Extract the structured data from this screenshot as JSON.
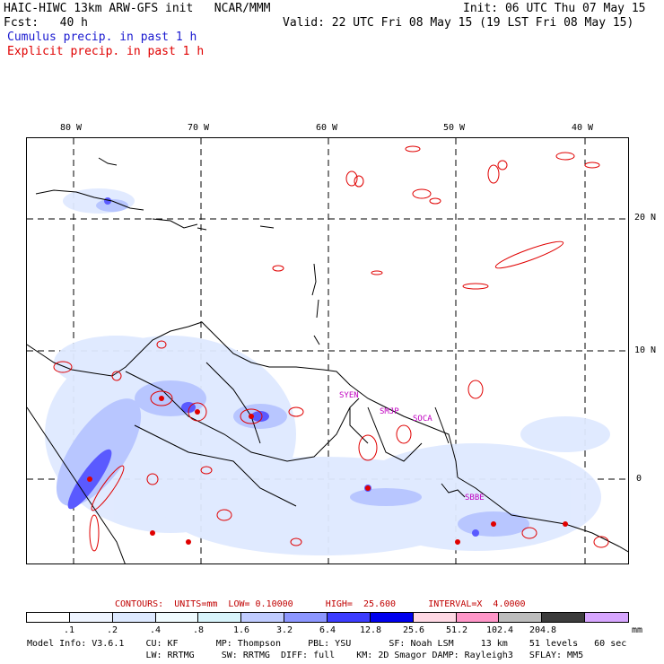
{
  "header": {
    "title": "HAIC-HIWC 13km ARW-GFS init   NCAR/MMM",
    "init": "Init: 06 UTC Thu 07 May 15",
    "fcst": "Fcst:   40 h",
    "valid": "Valid: 22 UTC Fri 08 May 15 (19 LST Fri 08 May 15)",
    "cumulus_label": "Cumulus precip. in past 1 h",
    "explicit_label": "Explicit precip. in past 1 h",
    "cumulus_color": "#1a1ad0",
    "explicit_color": "#e00000"
  },
  "map": {
    "lon_labels": [
      "80 W",
      "70 W",
      "60 W",
      "50 W",
      "40 W"
    ],
    "lat_labels": [
      "20 N",
      "10 N",
      "0"
    ],
    "stations": [
      "SYEN",
      "SMJP",
      "SOCA",
      "SBBE"
    ],
    "station_color": "#c000c0"
  },
  "contours": {
    "label": "CONTOURS:  UNITS=mm  LOW= 0.10000      HIGH=  25.600      INTERVAL=X  4.0000",
    "color": "#c00000"
  },
  "colorbar": {
    "colors": [
      "#ffffff",
      "#eef4ff",
      "#dde9ff",
      "#f0fbff",
      "#d8f4fb",
      "#c0ccff",
      "#8c96ff",
      "#3c3cff",
      "#0000ee",
      "#ffd8e4",
      "#ff96c8",
      "#bcbcbc",
      "#3c3c3c",
      "#d7a6ff"
    ],
    "labels": [
      ".1",
      ".2",
      ".4",
      ".8",
      "1.6",
      "3.2",
      "6.4",
      "12.8",
      "25.6",
      "51.2",
      "102.4",
      "204.8"
    ],
    "units": "mm"
  },
  "footer": {
    "line1": "Model Info: V3.6.1    CU: KF       MP: Thompson     PBL: YSU       SF: Noah LSM     13 km    51 levels   60 sec",
    "line2": "                      LW: RRTMG     SW: RRTMG  DIFF: full    KM: 2D Smagor DAMP: Rayleigh3   SFLAY: MM5"
  }
}
